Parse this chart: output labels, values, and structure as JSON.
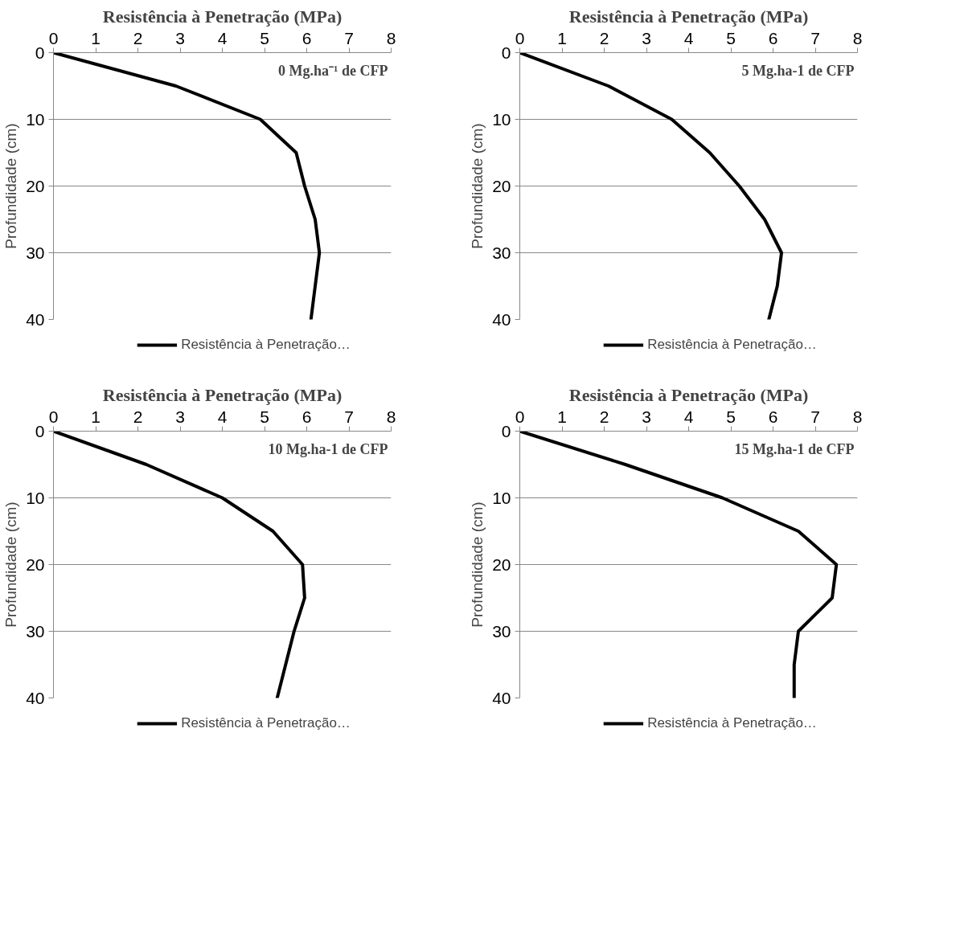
{
  "chart_data": [
    {
      "type": "line",
      "title": "Resistência à Penetração (MPa)",
      "ylabel": "Profundidade (cm)",
      "annotations": [
        "0 Mg.ha⁻¹ de CFP"
      ],
      "xlim": [
        0,
        8
      ],
      "xticks": [
        0,
        1,
        2,
        3,
        4,
        5,
        6,
        7,
        8
      ],
      "ylim": [
        40,
        0
      ],
      "yticks": [
        0,
        10,
        20,
        30,
        40
      ],
      "grid": "y",
      "legend": "bottom",
      "line_style": "solid",
      "series": [
        {
          "name": "Resistência à Penetração…",
          "color": "#000000",
          "values": [
            0,
            5,
            10,
            15,
            20,
            25,
            30,
            35,
            40
          ],
          "x": [
            0,
            2.9,
            4.9,
            5.75,
            5.95,
            6.2,
            6.3,
            6.2,
            6.1
          ]
        }
      ]
    },
    {
      "type": "line",
      "title": "Resistência à Penetração (MPa)",
      "ylabel": "Profundidade (cm)",
      "annotations": [
        "5 Mg.ha-1 de CFP"
      ],
      "xlim": [
        0,
        8
      ],
      "xticks": [
        0,
        1,
        2,
        3,
        4,
        5,
        6,
        7,
        8
      ],
      "ylim": [
        40,
        0
      ],
      "yticks": [
        0,
        10,
        20,
        30,
        40
      ],
      "grid": "y",
      "legend": "bottom",
      "line_style": "solid",
      "series": [
        {
          "name": "Resistência à Penetração…",
          "color": "#000000",
          "values": [
            0,
            5,
            10,
            15,
            20,
            25,
            30,
            35,
            40
          ],
          "x": [
            0,
            2.1,
            3.6,
            4.5,
            5.2,
            5.8,
            6.2,
            6.1,
            5.9
          ]
        }
      ]
    },
    {
      "type": "line",
      "title": "Resistência à Penetração (MPa)",
      "ylabel": "Profundidade (cm)",
      "annotations": [
        "10 Mg.ha-1 de CFP"
      ],
      "xlim": [
        0,
        8
      ],
      "xticks": [
        0,
        1,
        2,
        3,
        4,
        5,
        6,
        7,
        8
      ],
      "ylim": [
        40,
        0
      ],
      "yticks": [
        0,
        10,
        20,
        30,
        40
      ],
      "grid": "y",
      "legend": "bottom",
      "line_style": "solid",
      "series": [
        {
          "name": "Resistência à Penetração…",
          "color": "#000000",
          "values": [
            0,
            5,
            10,
            15,
            20,
            25,
            30,
            35,
            40
          ],
          "x": [
            0,
            2.2,
            4.0,
            5.2,
            5.9,
            5.95,
            5.7,
            5.5,
            5.3
          ]
        }
      ]
    },
    {
      "type": "line",
      "title": "Resistência à Penetração (MPa)",
      "ylabel": "Profundidade (cm)",
      "annotations": [
        "15 Mg.ha-1 de CFP"
      ],
      "xlim": [
        0,
        8
      ],
      "xticks": [
        0,
        1,
        2,
        3,
        4,
        5,
        6,
        7,
        8
      ],
      "ylim": [
        40,
        0
      ],
      "yticks": [
        0,
        10,
        20,
        30,
        40
      ],
      "grid": "y",
      "legend": "bottom",
      "line_style": "solid",
      "series": [
        {
          "name": "Resistência à Penetração…",
          "color": "#000000",
          "values": [
            0,
            5,
            10,
            15,
            20,
            25,
            30,
            35,
            40
          ],
          "x": [
            0,
            2.5,
            4.8,
            6.6,
            7.5,
            7.4,
            6.6,
            6.5,
            6.5
          ]
        }
      ]
    }
  ]
}
